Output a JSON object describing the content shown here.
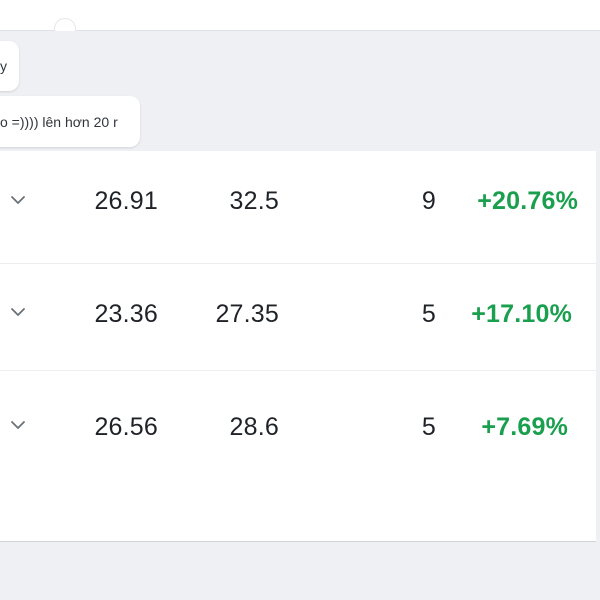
{
  "chat": {
    "bubbles": [
      {
        "text": "y"
      },
      {
        "text": "o =)))) lên hơn 20 r"
      }
    ]
  },
  "table": {
    "rows": [
      {
        "a": "26.91",
        "b": "32.5",
        "count": "9",
        "change": "+20.76%"
      },
      {
        "a": "23.36",
        "b": "27.35",
        "count": "5",
        "change": "+17.10%"
      },
      {
        "a": "26.56",
        "b": "28.6",
        "count": "5",
        "change": "+7.69%"
      }
    ]
  },
  "icons": {
    "expand": "chevron-down-icon"
  },
  "colors": {
    "positive": "#1a9f4e",
    "background": "#eef0f3"
  }
}
